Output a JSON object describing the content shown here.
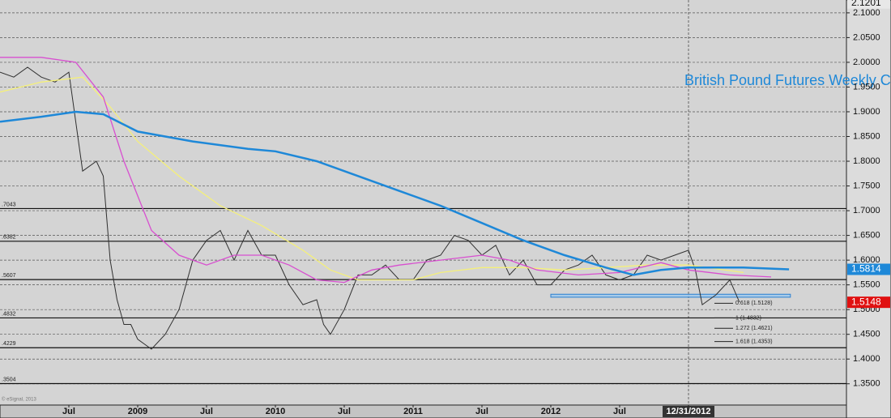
{
  "chart_data": {
    "type": "line",
    "annotation": "British Pound Futures Weekly Chart",
    "copyright": "© eSignal, 2013",
    "xlim": [
      2008.0,
      2014.147
    ],
    "xticks": [
      {
        "value": 2008.5,
        "label": "Jul"
      },
      {
        "value": 2009.0,
        "label": "2009"
      },
      {
        "value": 2009.5,
        "label": "Jul"
      },
      {
        "value": 2010.0,
        "label": "2010"
      },
      {
        "value": 2010.5,
        "label": "Jul"
      },
      {
        "value": 2011.0,
        "label": "2011"
      },
      {
        "value": 2011.5,
        "label": "Jul"
      },
      {
        "value": 2012.0,
        "label": "2012"
      },
      {
        "value": 2012.5,
        "label": "Jul"
      },
      {
        "value": 2013.0,
        "label": "12/31/2012"
      }
    ],
    "marker_line": 2013.0,
    "ylim": [
      1.307,
      2.126
    ],
    "yticks": [
      {
        "value": 1.35,
        "label": "1.3500"
      },
      {
        "value": 1.4,
        "label": "1.4000"
      },
      {
        "value": 1.45,
        "label": "1.4500"
      },
      {
        "value": 1.5,
        "label": "1.5000"
      },
      {
        "value": 1.55,
        "label": "1.5500"
      },
      {
        "value": 1.6,
        "label": "1.6000"
      },
      {
        "value": 1.65,
        "label": "1.6500"
      },
      {
        "value": 1.7,
        "label": "1.7000"
      },
      {
        "value": 1.75,
        "label": "1.7500"
      },
      {
        "value": 1.8,
        "label": "1.8000"
      },
      {
        "value": 1.85,
        "label": "1.8500"
      },
      {
        "value": 1.9,
        "label": "1.9000"
      },
      {
        "value": 1.95,
        "label": "1.9500"
      },
      {
        "value": 2.0,
        "label": "2.0000"
      },
      {
        "value": 2.05,
        "label": "2.0500"
      },
      {
        "value": 2.1,
        "label": "2.1000"
      }
    ],
    "grid": true,
    "series": [
      {
        "color": "#303030",
        "x": [
          2008.0,
          2008.1,
          2008.2,
          2008.3,
          2008.4,
          2008.5,
          2008.6,
          2008.7,
          2008.75,
          2008.8,
          2008.85,
          2008.9,
          2008.95,
          2009.0,
          2009.1,
          2009.2,
          2009.3,
          2009.4,
          2009.5,
          2009.6,
          2009.7,
          2009.8,
          2009.9,
          2010.0,
          2010.1,
          2010.2,
          2010.3,
          2010.35,
          2010.4,
          2010.5,
          2010.6,
          2010.7,
          2010.8,
          2010.9,
          2011.0,
          2011.1,
          2011.2,
          2011.3,
          2011.4,
          2011.5,
          2011.6,
          2011.7,
          2011.8,
          2011.9,
          2012.0,
          2012.1,
          2012.2,
          2012.3,
          2012.4,
          2012.5,
          2012.6,
          2012.7,
          2012.8,
          2012.9,
          2013.0,
          2013.05,
          2013.1,
          2013.15,
          2013.2,
          2013.3,
          2013.37
        ],
        "values": [
          1.98,
          1.97,
          1.99,
          1.97,
          1.96,
          1.98,
          1.78,
          1.8,
          1.77,
          1.6,
          1.52,
          1.47,
          1.47,
          1.44,
          1.42,
          1.45,
          1.5,
          1.6,
          1.64,
          1.66,
          1.6,
          1.66,
          1.61,
          1.61,
          1.55,
          1.51,
          1.52,
          1.47,
          1.45,
          1.5,
          1.57,
          1.57,
          1.59,
          1.56,
          1.56,
          1.6,
          1.61,
          1.65,
          1.64,
          1.61,
          1.63,
          1.57,
          1.6,
          1.55,
          1.55,
          1.58,
          1.59,
          1.61,
          1.57,
          1.56,
          1.57,
          1.61,
          1.6,
          1.61,
          1.62,
          1.58,
          1.51,
          1.52,
          1.53,
          1.56,
          1.5148
        ]
      },
      {
        "color": "#f5f07a",
        "x": [
          2008.0,
          2008.3,
          2008.6,
          2008.8,
          2009.0,
          2009.3,
          2009.6,
          2009.9,
          2010.2,
          2010.4,
          2010.6,
          2010.8,
          2011.0,
          2011.2,
          2011.5,
          2011.8,
          2012.1,
          2012.4,
          2012.7,
          2013.0,
          2013.4
        ],
        "values": [
          1.94,
          1.96,
          1.97,
          1.91,
          1.84,
          1.77,
          1.71,
          1.67,
          1.62,
          1.58,
          1.56,
          1.56,
          1.56,
          1.575,
          1.585,
          1.585,
          1.58,
          1.585,
          1.59,
          1.59,
          1.575
        ]
      },
      {
        "color": "#d84fd0",
        "x": [
          2008.0,
          2008.3,
          2008.55,
          2008.75,
          2008.9,
          2009.1,
          2009.3,
          2009.5,
          2009.7,
          2009.9,
          2010.1,
          2010.3,
          2010.5,
          2010.7,
          2010.9,
          2011.2,
          2011.5,
          2011.7,
          2011.9,
          2012.2,
          2012.5,
          2012.8,
          2013.0,
          2013.3,
          2013.6
        ],
        "values": [
          2.01,
          2.01,
          2.0,
          1.93,
          1.8,
          1.66,
          1.61,
          1.59,
          1.61,
          1.61,
          1.59,
          1.56,
          1.555,
          1.58,
          1.59,
          1.6,
          1.61,
          1.6,
          1.58,
          1.57,
          1.575,
          1.595,
          1.58,
          1.57,
          1.566
        ]
      },
      {
        "color": "#1e88d8",
        "x": [
          2008.0,
          2008.3,
          2008.55,
          2008.75,
          2009.0,
          2009.4,
          2009.8,
          2010.0,
          2010.3,
          2010.6,
          2010.9,
          2011.2,
          2011.5,
          2011.8,
          2012.1,
          2012.4,
          2012.6,
          2012.8,
          2013.0,
          2013.4,
          2013.73
        ],
        "values": [
          1.88,
          1.89,
          1.9,
          1.895,
          1.86,
          1.84,
          1.825,
          1.82,
          1.8,
          1.77,
          1.74,
          1.71,
          1.675,
          1.64,
          1.61,
          1.585,
          1.57,
          1.58,
          1.585,
          1.585,
          1.5814
        ]
      }
    ],
    "levels": [
      {
        "value": 1.7043,
        "label": ".7043"
      },
      {
        "value": 1.6382,
        "label": ".6382"
      },
      {
        "value": 1.5607,
        "label": ".5607"
      },
      {
        "value": 1.4832,
        "label": ".4832"
      },
      {
        "value": 1.4229,
        "label": ".4229"
      },
      {
        "value": 1.3504,
        "label": ".3504"
      }
    ],
    "support_zone": {
      "x": [
        2012.0,
        2013.74
      ],
      "y": [
        1.525,
        1.531
      ]
    },
    "fib_levels": [
      {
        "value": 1.5128,
        "label": "0.618 (1.5128)"
      },
      {
        "value": 1.4832,
        "label": "1 (1.4832)"
      },
      {
        "value": 1.4621,
        "label": "1.272 (1.4621)"
      },
      {
        "value": 1.4353,
        "label": "1.618 (1.4353)"
      }
    ],
    "price_labels": [
      {
        "value": 2.1201,
        "color": "#e8e8e8"
      },
      {
        "value": 1.5814,
        "color": "#1e88d8"
      },
      {
        "value": 1.5148,
        "color": "#e01010"
      }
    ]
  }
}
